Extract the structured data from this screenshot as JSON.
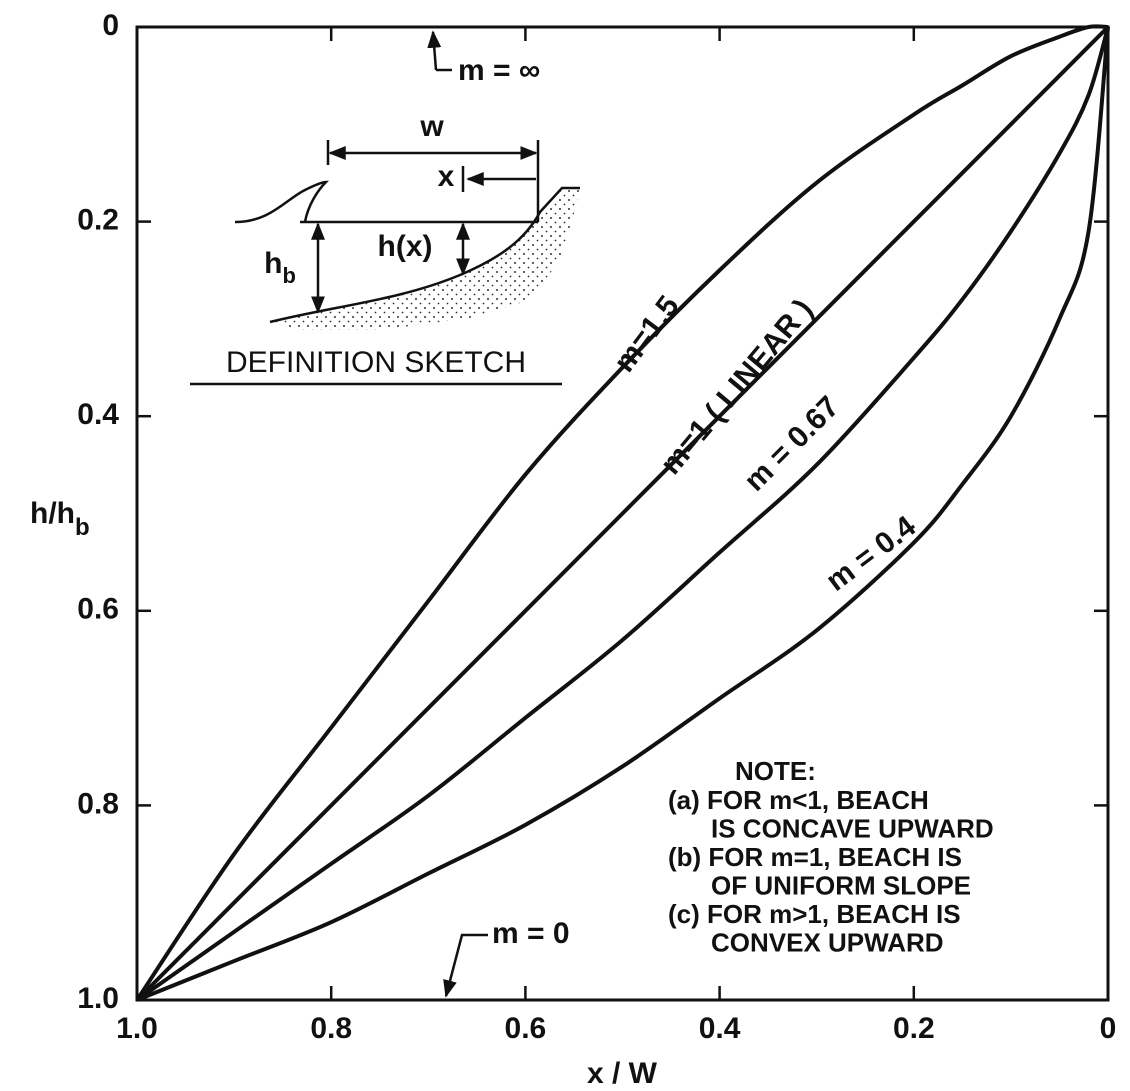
{
  "chart_data": {
    "type": "line",
    "x_label": "x / W",
    "y_label": {
      "main": "h/h",
      "sub": "b"
    },
    "x": [
      1,
      0.9,
      0.8,
      0.7,
      0.6,
      0.5,
      0.4,
      0.3,
      0.2,
      0.15,
      0.1,
      0.05,
      0.02,
      0
    ],
    "series": [
      {
        "name": "m=1.5",
        "color": "#111111",
        "values": [
          1,
          0.85,
          0.72,
          0.59,
          0.46,
          0.35,
          0.25,
          0.16,
          0.09,
          0.06,
          0.03,
          0.01,
          0,
          0
        ]
      },
      {
        "name": "m=1 ( LINEAR )",
        "color": "#111111",
        "values": [
          1,
          0.9,
          0.8,
          0.7,
          0.6,
          0.5,
          0.4,
          0.3,
          0.2,
          0.15,
          0.1,
          0.05,
          0.02,
          0
        ]
      },
      {
        "name": "m = 0.67",
        "color": "#111111",
        "values": [
          1,
          0.93,
          0.86,
          0.79,
          0.71,
          0.63,
          0.54,
          0.45,
          0.34,
          0.28,
          0.21,
          0.13,
          0.07,
          0
        ]
      },
      {
        "name": "m = 0.4",
        "color": "#111111",
        "values": [
          1,
          0.96,
          0.92,
          0.87,
          0.82,
          0.76,
          0.69,
          0.62,
          0.53,
          0.47,
          0.4,
          0.3,
          0.21,
          0
        ]
      }
    ],
    "xlim": [
      1,
      0
    ],
    "ylim": [
      0,
      1
    ],
    "xticks": [
      {
        "value": 1,
        "label": "1.0"
      },
      0.8,
      0.6,
      0.4,
      0.2,
      0
    ],
    "yticks": [
      0,
      0.2,
      0.4,
      0.6,
      0.8,
      {
        "value": 1,
        "label": "1.0"
      }
    ],
    "y_inverted": true,
    "grid": false,
    "annotations": [
      "m = ∞",
      "m = 0"
    ],
    "sketch": {
      "title": "DEFINITION SKETCH",
      "w": "w",
      "x": "x",
      "hb": {
        "main": "h",
        "sub": "b"
      },
      "hx": "h(x)"
    },
    "notes": [
      "NOTE:",
      "(a) FOR  m<1, BEACH",
      "IS CONCAVE UPWARD",
      "(b) FOR  m=1, BEACH IS",
      "OF UNIFORM SLOPE",
      "(c) FOR  m>1, BEACH IS",
      "CONVEX   UPWARD"
    ]
  }
}
